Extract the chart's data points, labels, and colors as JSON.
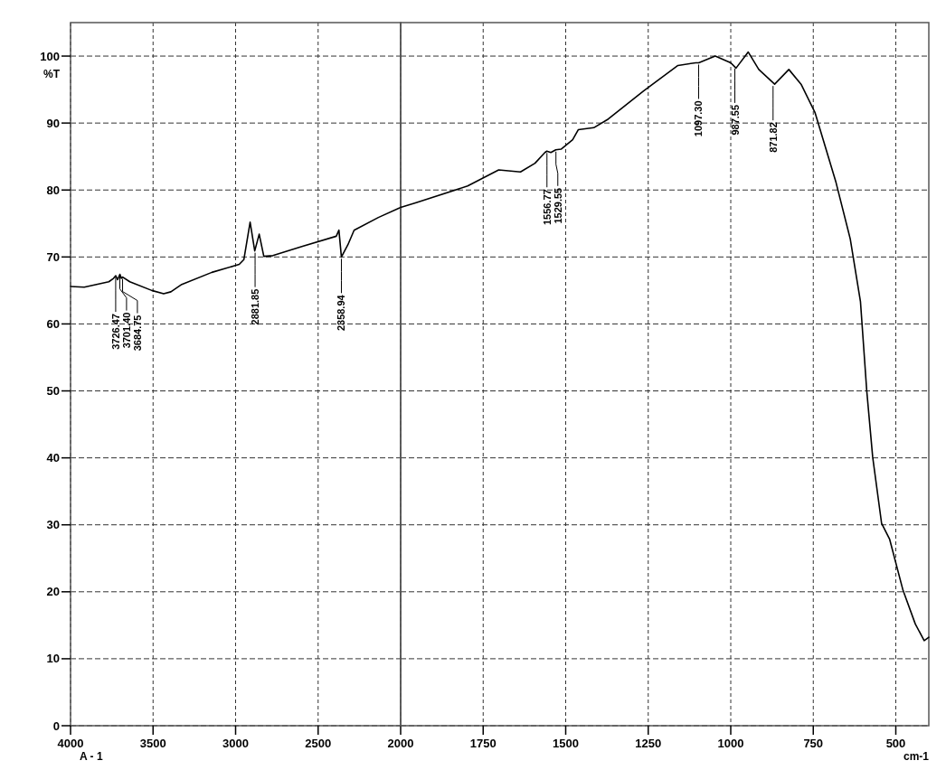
{
  "chart_data": [
    {
      "type": "line",
      "ylabel": "%T",
      "xlim": [
        4000,
        2000
      ],
      "ylim": [
        0,
        105
      ],
      "xticks": [
        4000,
        3500,
        3000,
        2500,
        2000
      ],
      "yticks": [
        0,
        10,
        20,
        30,
        40,
        50,
        60,
        70,
        80,
        90,
        100
      ],
      "grid": true,
      "line_style": "solid",
      "series": [
        {
          "color": "#000000",
          "x": [
            4000,
            3917,
            3768,
            3740,
            3726,
            3715,
            3701,
            3692,
            3684,
            3641,
            3508,
            3436,
            3392,
            3326,
            3144,
            2978,
            2950,
            2912,
            2884,
            2857,
            2829,
            2774,
            2594,
            2390,
            2374,
            2359,
            2320,
            2282,
            2135,
            2000
          ],
          "values": [
            65.6,
            65.5,
            66.3,
            66.8,
            67.2,
            66.6,
            67.4,
            66.8,
            67.0,
            66.3,
            65.0,
            64.5,
            64.8,
            65.9,
            67.7,
            68.9,
            69.6,
            75.2,
            70.9,
            73.4,
            70.1,
            70.2,
            71.6,
            73.1,
            74.0,
            70.0,
            71.8,
            74.0,
            75.9,
            77.4
          ]
        }
      ],
      "annotations": [
        {
          "text": "3726.47",
          "x": 3726.47,
          "y": 67.2
        },
        {
          "text": "3701.40",
          "x": 3701.4,
          "y": 67.4
        },
        {
          "text": "3684.75",
          "x": 3684.75,
          "y": 67.0
        },
        {
          "text": "2881.85",
          "x": 2881.85,
          "y": 70.9
        },
        {
          "text": "2358.94",
          "x": 2358.94,
          "y": 70.0
        },
        "A - 1"
      ]
    },
    {
      "type": "line",
      "xlabel": "cm-1",
      "xlim": [
        2000,
        400
      ],
      "ylim": [
        0,
        105
      ],
      "xticks": [
        1750,
        1500,
        1250,
        1000,
        750,
        500
      ],
      "yticks": [
        0,
        10,
        20,
        30,
        40,
        50,
        60,
        70,
        80,
        90,
        100
      ],
      "tick_labels": "x",
      "grid": true,
      "line_style": "solid",
      "series": [
        {
          "color": "#000000",
          "x": [
            2000,
            1953,
            1797,
            1703,
            1637,
            1593,
            1563,
            1557,
            1545,
            1530,
            1514,
            1479,
            1462,
            1415,
            1371,
            1264,
            1160,
            1106,
            1097,
            1047,
            1000,
            988,
            984,
            947,
            915,
            867,
            824,
            787,
            745,
            681,
            638,
            607,
            588,
            570,
            543,
            519,
            478,
            441,
            414,
            400
          ],
          "values": [
            77.4,
            78.1,
            80.6,
            83.0,
            82.7,
            84.0,
            85.6,
            85.8,
            85.6,
            86.0,
            86.1,
            87.5,
            89.0,
            89.3,
            90.6,
            94.8,
            98.6,
            99.0,
            99.0,
            100.0,
            99.0,
            98.4,
            98.2,
            100.6,
            98.0,
            95.8,
            98.0,
            95.8,
            91.6,
            81.1,
            72.7,
            63.3,
            50.0,
            40.1,
            30.2,
            27.9,
            20.2,
            15.2,
            12.7,
            13.2
          ]
        }
      ],
      "annotations": [
        {
          "text": "1556.77",
          "x": 1556.77,
          "y": 85.8
        },
        {
          "text": "1529.55",
          "x": 1529.55,
          "y": 86.0
        },
        {
          "text": "1097.30",
          "x": 1097.3,
          "y": 99.0
        },
        {
          "text": "987.55",
          "x": 987.55,
          "y": 98.4
        },
        {
          "text": "871.82",
          "x": 871.82,
          "y": 95.8
        }
      ]
    }
  ]
}
